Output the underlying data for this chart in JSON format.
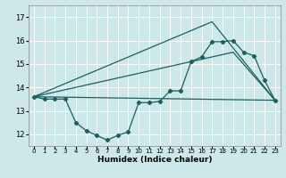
{
  "bg_color": "#cce8e8",
  "grid_color": "#ffffff",
  "line_color": "#1a6060",
  "xlabel": "Humidex (Indice chaleur)",
  "xlim": [
    -0.5,
    23.5
  ],
  "ylim": [
    11.5,
    17.5
  ],
  "yticks": [
    12,
    13,
    14,
    15,
    16,
    17
  ],
  "xticks": [
    0,
    1,
    2,
    3,
    4,
    5,
    6,
    7,
    8,
    9,
    10,
    11,
    12,
    13,
    14,
    15,
    16,
    17,
    18,
    19,
    20,
    21,
    22,
    23
  ],
  "curve_x": [
    0,
    1,
    2,
    3,
    4,
    5,
    6,
    7,
    8,
    9,
    10,
    11,
    12,
    13,
    14,
    15,
    16,
    17,
    18,
    19,
    20,
    21,
    22,
    23
  ],
  "curve_y": [
    13.6,
    13.5,
    13.5,
    13.5,
    12.5,
    12.15,
    11.95,
    11.75,
    11.95,
    12.1,
    13.35,
    13.35,
    13.4,
    13.85,
    13.85,
    15.1,
    15.3,
    15.95,
    15.95,
    16.0,
    15.5,
    15.35,
    14.3,
    13.45
  ],
  "line1_x": [
    0,
    23
  ],
  "line1_y": [
    13.6,
    13.45
  ],
  "line2_x": [
    0,
    17,
    23
  ],
  "line2_y": [
    13.6,
    16.8,
    13.45
  ],
  "line3_x": [
    0,
    19,
    23
  ],
  "line3_y": [
    13.6,
    15.5,
    13.45
  ]
}
